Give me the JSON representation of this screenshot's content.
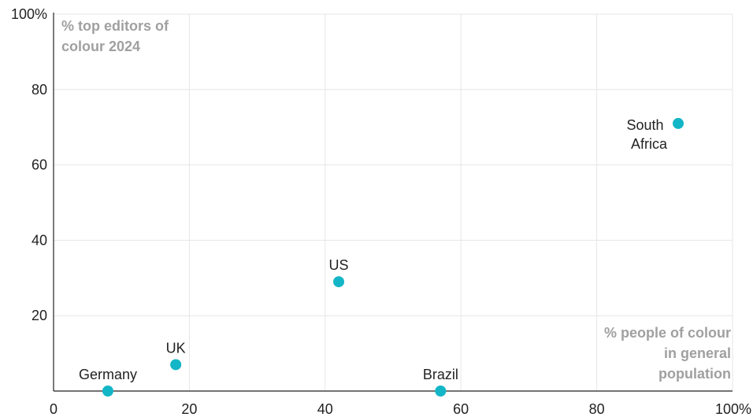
{
  "chart_data": {
    "type": "scatter",
    "ylabel_lines": [
      "% top editors of",
      "colour 2024"
    ],
    "xlabel_lines": [
      "% people of colour",
      "in general",
      "population"
    ],
    "xlim": [
      0,
      100
    ],
    "ylim": [
      0,
      100
    ],
    "x_ticks": [
      "0",
      "20",
      "40",
      "60",
      "80",
      "100%"
    ],
    "y_ticks": [
      "20",
      "40",
      "60",
      "80",
      "100%"
    ],
    "grid": true,
    "point_color": "#13b6c6",
    "points": [
      {
        "label": [
          "Germany"
        ],
        "x": 8,
        "y": 0
      },
      {
        "label": [
          "UK"
        ],
        "x": 18,
        "y": 7
      },
      {
        "label": [
          "US"
        ],
        "x": 42,
        "y": 29
      },
      {
        "label": [
          "Brazil"
        ],
        "x": 57,
        "y": 0
      },
      {
        "label": [
          "South",
          "Africa"
        ],
        "x": 92,
        "y": 71
      }
    ]
  }
}
